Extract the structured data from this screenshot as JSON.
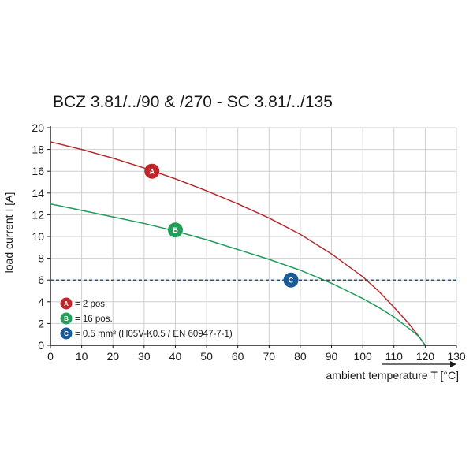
{
  "chart_data": {
    "type": "line",
    "title": "BCZ 3.81/../90 & /270 - SC 3.81/../135",
    "xlabel": "ambient temperature T [°C]",
    "ylabel": "load current I [A]",
    "xlim": [
      0,
      130
    ],
    "ylim": [
      0,
      20
    ],
    "x_ticks": [
      0,
      10,
      20,
      30,
      40,
      50,
      60,
      70,
      80,
      90,
      100,
      110,
      120,
      130
    ],
    "y_ticks": [
      0,
      2,
      4,
      6,
      8,
      10,
      12,
      14,
      16,
      18,
      20
    ],
    "grid": true,
    "legend_position": "bottom-left",
    "series": [
      {
        "marker": "A",
        "color": "#b32a2e",
        "x": [
          0,
          10,
          20,
          30,
          40,
          50,
          60,
          70,
          80,
          90,
          100,
          105,
          110,
          115,
          118,
          120
        ],
        "values": [
          18.7,
          18.0,
          17.2,
          16.3,
          15.3,
          14.2,
          13.0,
          11.7,
          10.2,
          8.4,
          6.3,
          5.0,
          3.5,
          1.9,
          0.8,
          0.0
        ]
      },
      {
        "marker": "B",
        "color": "#1e9a5a",
        "x": [
          0,
          10,
          20,
          30,
          40,
          50,
          60,
          70,
          80,
          90,
          95,
          100,
          105,
          110,
          115,
          118,
          120
        ],
        "values": [
          13.0,
          12.4,
          11.8,
          11.2,
          10.5,
          9.7,
          8.8,
          7.9,
          6.9,
          5.7,
          5.0,
          4.3,
          3.5,
          2.6,
          1.5,
          0.8,
          0.0
        ]
      },
      {
        "marker": "C",
        "color": "#1a5a8a",
        "dashed": true,
        "x": [
          0,
          130
        ],
        "values": [
          6,
          6
        ]
      }
    ],
    "markers": [
      {
        "label": "A",
        "x": 32.5,
        "y": 16.0,
        "color": "#c0272d"
      },
      {
        "label": "B",
        "x": 40.0,
        "y": 10.6,
        "color": "#22a05a"
      },
      {
        "label": "C",
        "x": 77.0,
        "y": 6.0,
        "color": "#1a5a96"
      }
    ],
    "legend": [
      {
        "marker": "A",
        "text": "= 2 pos."
      },
      {
        "marker": "B",
        "text": "= 16 pos."
      },
      {
        "marker": "C",
        "text": "= 0.5 mm² (H05V-K0.5 / EN 60947-7-1)"
      }
    ]
  }
}
